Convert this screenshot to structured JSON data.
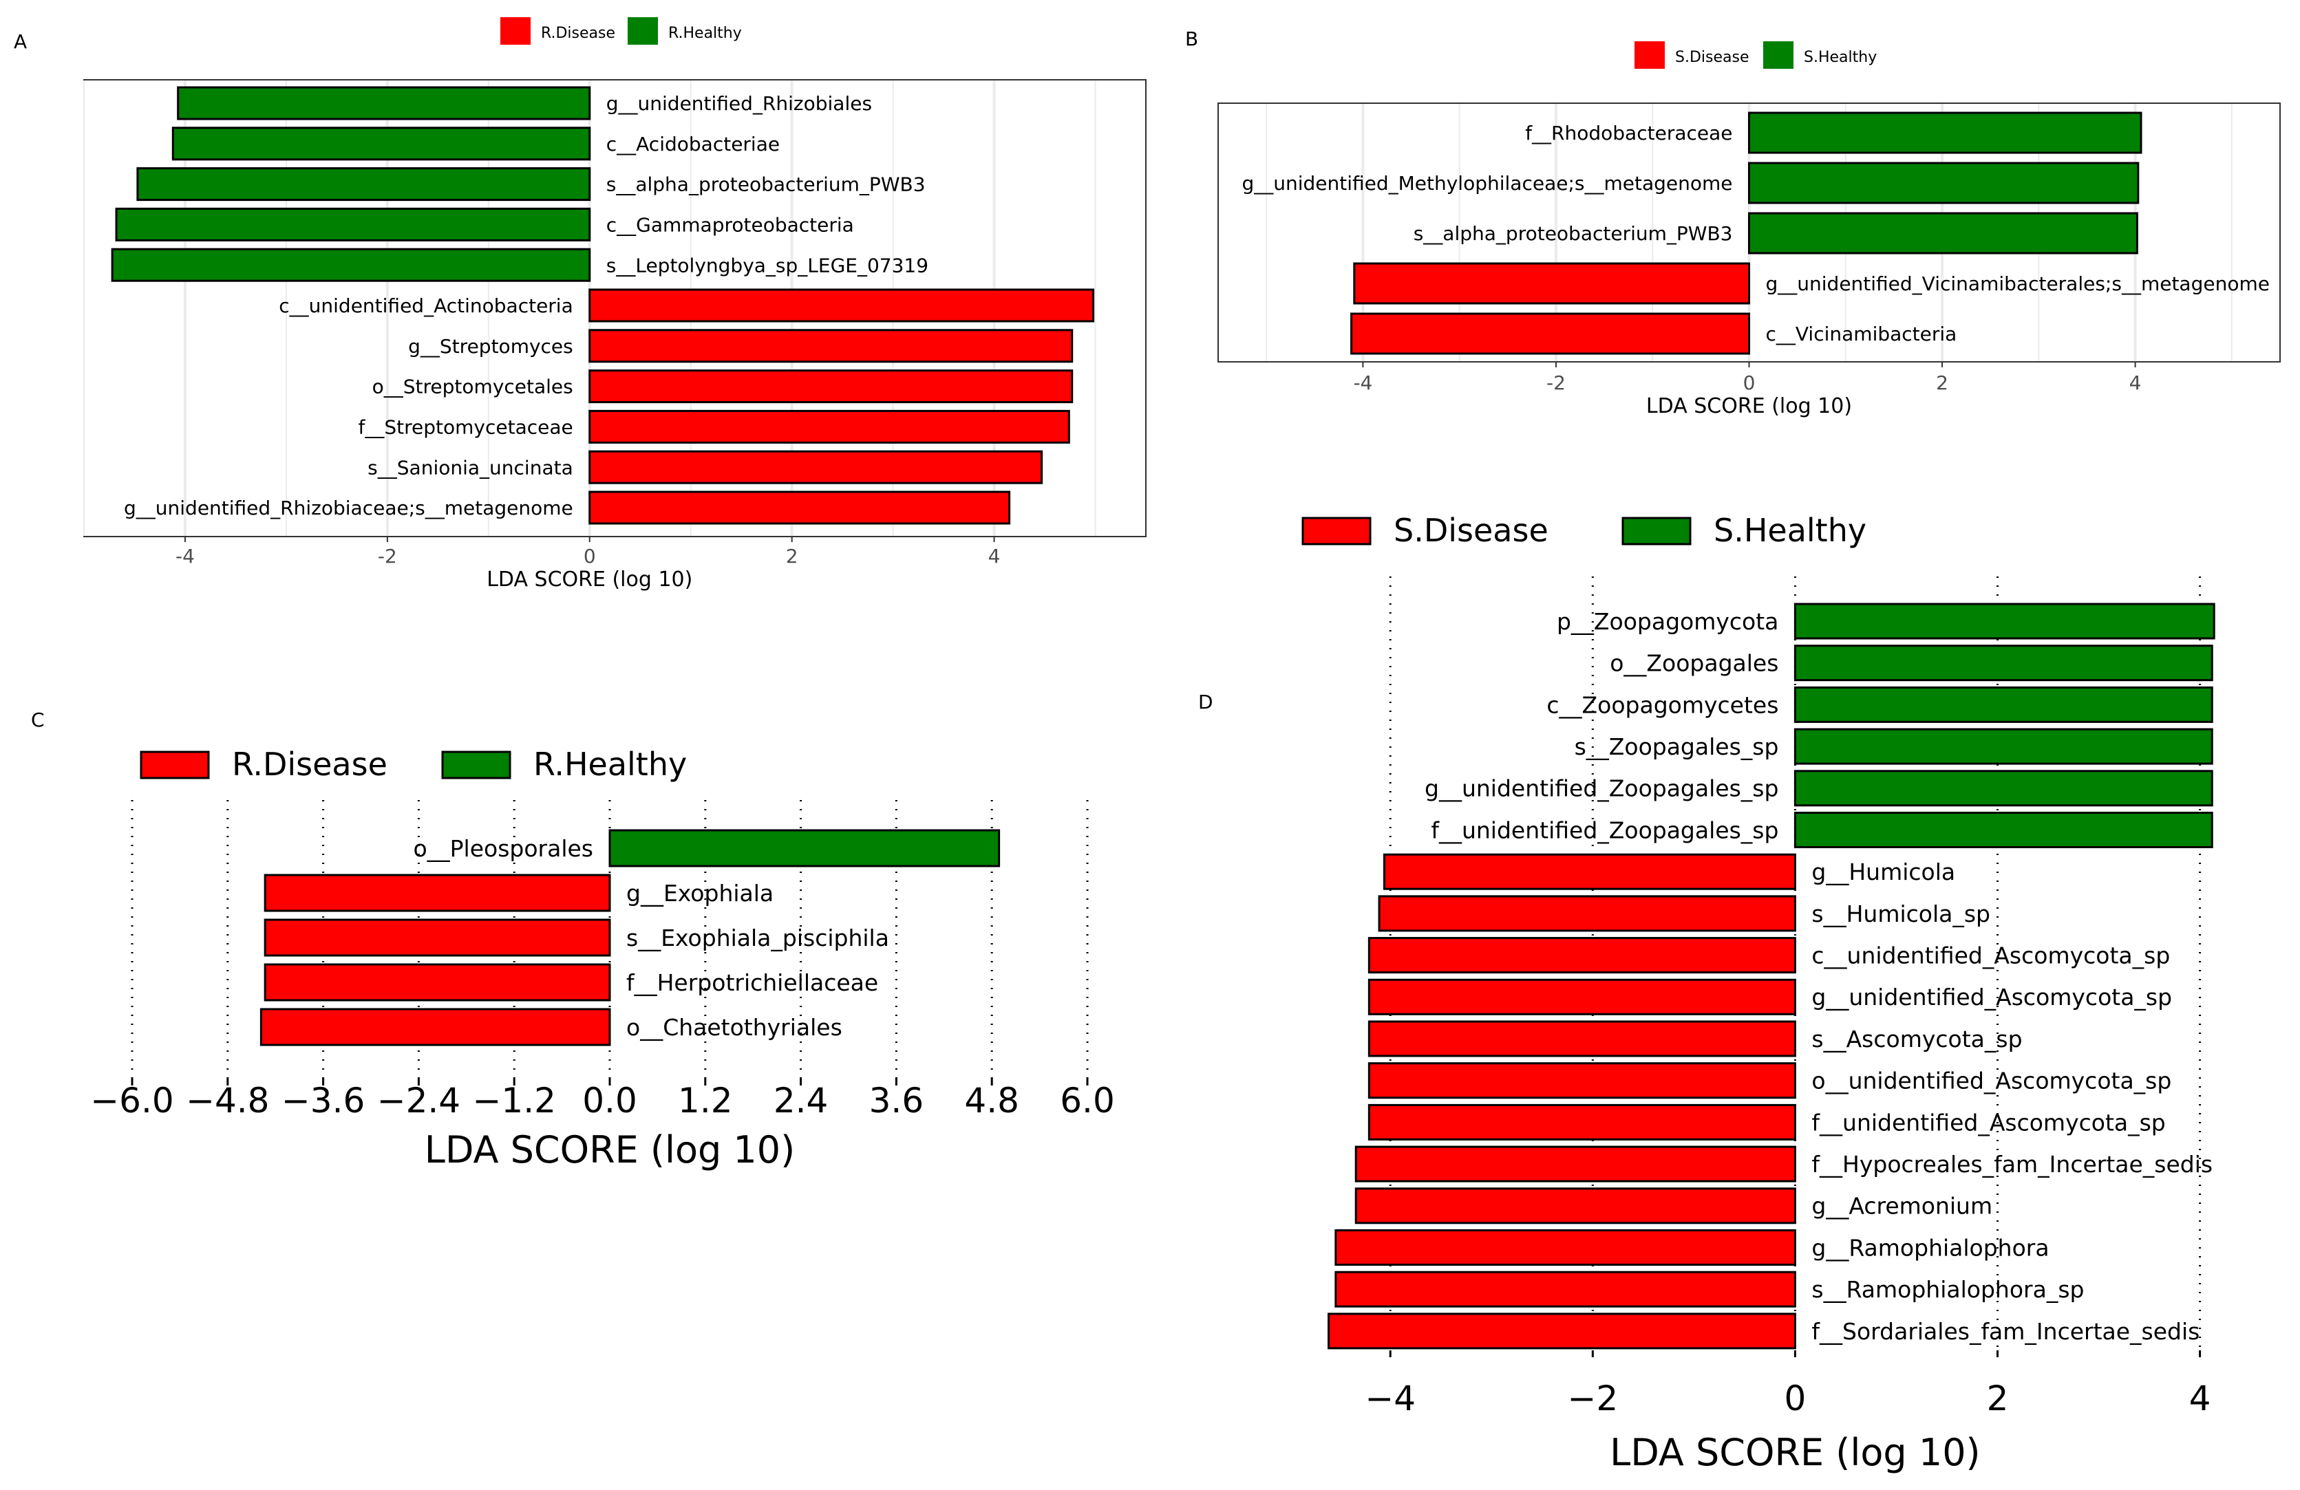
{
  "colors": {
    "disease": "#ff0000",
    "healthy": "#008000",
    "grid": "#ebebeb",
    "axis_text": "#4d4d4d",
    "text": "#000000"
  },
  "chart_data": [
    {
      "id": "A",
      "panel_label": "A",
      "type": "bar",
      "orientation": "horizontal",
      "legend": [
        {
          "label": "R.Disease",
          "group": "disease"
        },
        {
          "label": "R.Healthy",
          "group": "healthy"
        }
      ],
      "xlabel": "LDA SCORE (log 10)",
      "xlim": [
        -5.0,
        5.5
      ],
      "xticks": [
        -4,
        -2,
        0,
        2,
        4
      ],
      "xtick_labels": [
        "-4",
        "-2",
        "0",
        "2",
        "4"
      ],
      "bars": [
        {
          "label": "g__unidentified_Rhizobiales",
          "value": -4.07,
          "group": "healthy"
        },
        {
          "label": "c__Acidobacteriae",
          "value": -4.12,
          "group": "healthy"
        },
        {
          "label": "s__alpha_proteobacterium_PWB3",
          "value": -4.47,
          "group": "healthy"
        },
        {
          "label": "c__Gammaproteobacteria",
          "value": -4.68,
          "group": "healthy"
        },
        {
          "label": "s__Leptolyngbya_sp_LEGE_07319",
          "value": -4.72,
          "group": "healthy"
        },
        {
          "label": "c__unidentified_Actinobacteria",
          "value": 4.98,
          "group": "disease"
        },
        {
          "label": "g__Streptomyces",
          "value": 4.77,
          "group": "disease"
        },
        {
          "label": "o__Streptomycetales",
          "value": 4.77,
          "group": "disease"
        },
        {
          "label": "f__Streptomycetaceae",
          "value": 4.74,
          "group": "disease"
        },
        {
          "label": "s__Sanionia_uncinata",
          "value": 4.47,
          "group": "disease"
        },
        {
          "label": "g__unidentified_Rhizobiaceae;s__metagenome",
          "value": 4.15,
          "group": "disease"
        }
      ]
    },
    {
      "id": "B",
      "panel_label": "B",
      "type": "bar",
      "orientation": "horizontal",
      "legend": [
        {
          "label": "S.Disease",
          "group": "disease"
        },
        {
          "label": "S.Healthy",
          "group": "healthy"
        }
      ],
      "xlabel": "LDA SCORE (log 10)",
      "xlim": [
        -5.5,
        5.5
      ],
      "xticks": [
        -4,
        -2,
        0,
        2,
        4
      ],
      "xtick_labels": [
        "-4",
        "-2",
        "0",
        "2",
        "4"
      ],
      "bars": [
        {
          "label": "f__Rhodobacteraceae",
          "value": 4.06,
          "group": "healthy"
        },
        {
          "label": "g__unidentified_Methylophilaceae;s__metagenome",
          "value": 4.03,
          "group": "healthy"
        },
        {
          "label": "s__alpha_proteobacterium_PWB3",
          "value": 4.02,
          "group": "healthy"
        },
        {
          "label": "g__unidentified_Vicinamibacterales;s__metagenome",
          "value": -4.09,
          "group": "disease"
        },
        {
          "label": "c__Vicinamibacteria",
          "value": -4.12,
          "group": "disease"
        }
      ]
    },
    {
      "id": "C",
      "panel_label": "C",
      "type": "bar",
      "orientation": "horizontal",
      "legend": [
        {
          "label": "R.Disease",
          "group": "disease"
        },
        {
          "label": "R.Healthy",
          "group": "healthy"
        }
      ],
      "xlabel": "LDA SCORE (log 10)",
      "xlim": [
        -6.0,
        6.0
      ],
      "xticks": [
        -6.0,
        -4.8,
        -3.6,
        -2.4,
        -1.2,
        0.0,
        1.2,
        2.4,
        3.6,
        4.8,
        6.0
      ],
      "xtick_labels": [
        "−6.0",
        "−4.8",
        "−3.6",
        "−2.4",
        "−1.2",
        "0.0",
        "1.2",
        "2.4",
        "3.6",
        "4.8",
        "6.0"
      ],
      "bars": [
        {
          "label": "o__Pleosporales",
          "value": 4.89,
          "group": "healthy"
        },
        {
          "label": "g__Exophiala",
          "value": -4.33,
          "group": "disease"
        },
        {
          "label": "s__Exophiala_pisciphila",
          "value": -4.33,
          "group": "disease"
        },
        {
          "label": "f__Herpotrichiellaceae",
          "value": -4.33,
          "group": "disease"
        },
        {
          "label": "o__Chaetothyriales",
          "value": -4.38,
          "group": "disease"
        }
      ]
    },
    {
      "id": "D",
      "panel_label": "D",
      "type": "bar",
      "orientation": "horizontal",
      "legend": [
        {
          "label": "S.Disease",
          "group": "disease"
        },
        {
          "label": "S.Healthy",
          "group": "healthy"
        }
      ],
      "xlabel": "LDA SCORE (log 10)",
      "xlim": [
        -4.6,
        4.2
      ],
      "xticks": [
        -4,
        -2,
        0,
        2,
        4
      ],
      "xtick_labels": [
        "−4",
        "−2",
        "0",
        "2",
        "4"
      ],
      "bars": [
        {
          "label": "p__Zoopagomycota",
          "value": 4.14,
          "group": "healthy"
        },
        {
          "label": "o__Zoopagales",
          "value": 4.12,
          "group": "healthy"
        },
        {
          "label": "c__Zoopagomycetes",
          "value": 4.12,
          "group": "healthy"
        },
        {
          "label": "s__Zoopagales_sp",
          "value": 4.12,
          "group": "healthy"
        },
        {
          "label": "g__unidentified_Zoopagales_sp",
          "value": 4.12,
          "group": "healthy"
        },
        {
          "label": "f__unidentified_Zoopagales_sp",
          "value": 4.12,
          "group": "healthy"
        },
        {
          "label": "g__Humicola",
          "value": -4.06,
          "group": "disease"
        },
        {
          "label": "s__Humicola_sp",
          "value": -4.11,
          "group": "disease"
        },
        {
          "label": "c__unidentified_Ascomycota_sp",
          "value": -4.21,
          "group": "disease"
        },
        {
          "label": "g__unidentified_Ascomycota_sp",
          "value": -4.21,
          "group": "disease"
        },
        {
          "label": "s__Ascomycota_sp",
          "value": -4.21,
          "group": "disease"
        },
        {
          "label": "o__unidentified_Ascomycota_sp",
          "value": -4.21,
          "group": "disease"
        },
        {
          "label": "f__unidentified_Ascomycota_sp",
          "value": -4.21,
          "group": "disease"
        },
        {
          "label": "f__Hypocreales_fam_Incertae_sedis",
          "value": -4.34,
          "group": "disease"
        },
        {
          "label": "g__Acremonium",
          "value": -4.34,
          "group": "disease"
        },
        {
          "label": "g__Ramophialophora",
          "value": -4.54,
          "group": "disease"
        },
        {
          "label": "s__Ramophialophora_sp",
          "value": -4.54,
          "group": "disease"
        },
        {
          "label": "f__Sordariales_fam_Incertae_sedis",
          "value": -4.61,
          "group": "disease"
        }
      ]
    }
  ]
}
